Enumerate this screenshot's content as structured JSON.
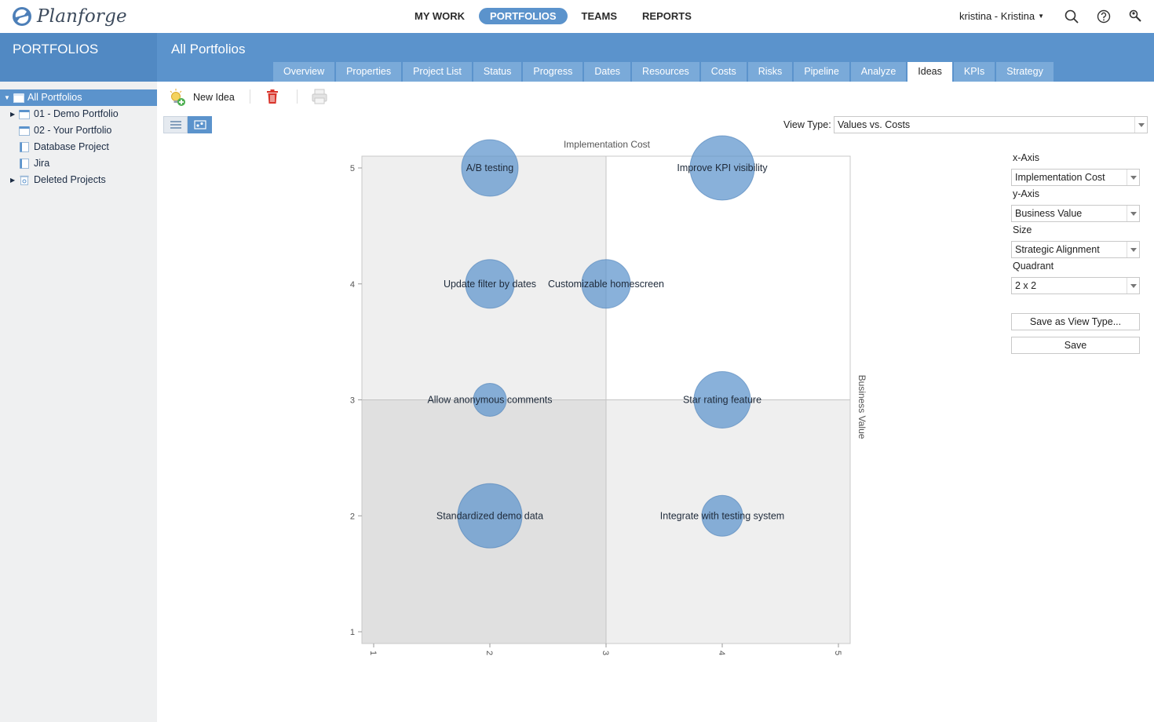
{
  "app": {
    "name": "Planforge"
  },
  "nav": [
    {
      "label": "MY WORK",
      "active": false
    },
    {
      "label": "PORTFOLIOS",
      "active": true
    },
    {
      "label": "TEAMS",
      "active": false
    },
    {
      "label": "REPORTS",
      "active": false
    }
  ],
  "user": {
    "name": "kristina - Kristina"
  },
  "sidebar": {
    "title": "PORTFOLIOS",
    "items": [
      {
        "label": "All Portfolios",
        "selected": true,
        "expanded": true
      },
      {
        "label": "01 - Demo Portfolio",
        "expandable": true
      },
      {
        "label": "02 - Your Portfolio"
      },
      {
        "label": "Database Project"
      },
      {
        "label": "Jira"
      },
      {
        "label": "Deleted Projects",
        "expandable": true
      }
    ]
  },
  "page": {
    "title": "All Portfolios"
  },
  "tabs": [
    "Overview",
    "Properties",
    "Project List",
    "Status",
    "Progress",
    "Dates",
    "Resources",
    "Costs",
    "Risks",
    "Pipeline",
    "Analyze",
    "Ideas",
    "KPIs",
    "Strategy"
  ],
  "active_tab": "Ideas",
  "toolbar": {
    "new_idea": "New Idea"
  },
  "view_type": {
    "label": "View Type:",
    "value": "Values vs. Costs"
  },
  "panel": {
    "x_axis_label": "x-Axis",
    "x_axis_value": "Implementation Cost",
    "y_axis_label": "y-Axis",
    "y_axis_value": "Business Value",
    "size_label": "Size",
    "size_value": "Strategic Alignment",
    "quadrant_label": "Quadrant",
    "quadrant_value": "2 x 2",
    "save_as": "Save as View Type...",
    "save": "Save"
  },
  "colors": {
    "accent": "#5b93cc",
    "bubble": "#5b93cc",
    "sidebar_bg": "#eff0f1"
  },
  "chart_data": {
    "type": "scatter",
    "xlabel": "Implementation Cost",
    "ylabel": "Business Value",
    "xlim": [
      1,
      5
    ],
    "ylim": [
      1,
      5
    ],
    "xticks": [
      1,
      2,
      3,
      4,
      5
    ],
    "yticks": [
      1,
      2,
      3,
      4,
      5
    ],
    "quadrant": "2 x 2",
    "points": [
      {
        "label": "A/B testing",
        "x": 2,
        "y": 5,
        "size": 3.6
      },
      {
        "label": "Improve KPI visibility",
        "x": 4,
        "y": 5,
        "size": 4.1
      },
      {
        "label": "Update filter by dates",
        "x": 2,
        "y": 4,
        "size": 3.1
      },
      {
        "label": "Customizable homescreen",
        "x": 3,
        "y": 4,
        "size": 3.1
      },
      {
        "label": "Allow anonymous comments",
        "x": 2,
        "y": 3,
        "size": 2.1
      },
      {
        "label": "Star rating feature",
        "x": 4,
        "y": 3,
        "size": 3.6
      },
      {
        "label": "Standardized demo data",
        "x": 2,
        "y": 2,
        "size": 4.1
      },
      {
        "label": "Integrate with testing system",
        "x": 4,
        "y": 2,
        "size": 2.6
      }
    ]
  }
}
